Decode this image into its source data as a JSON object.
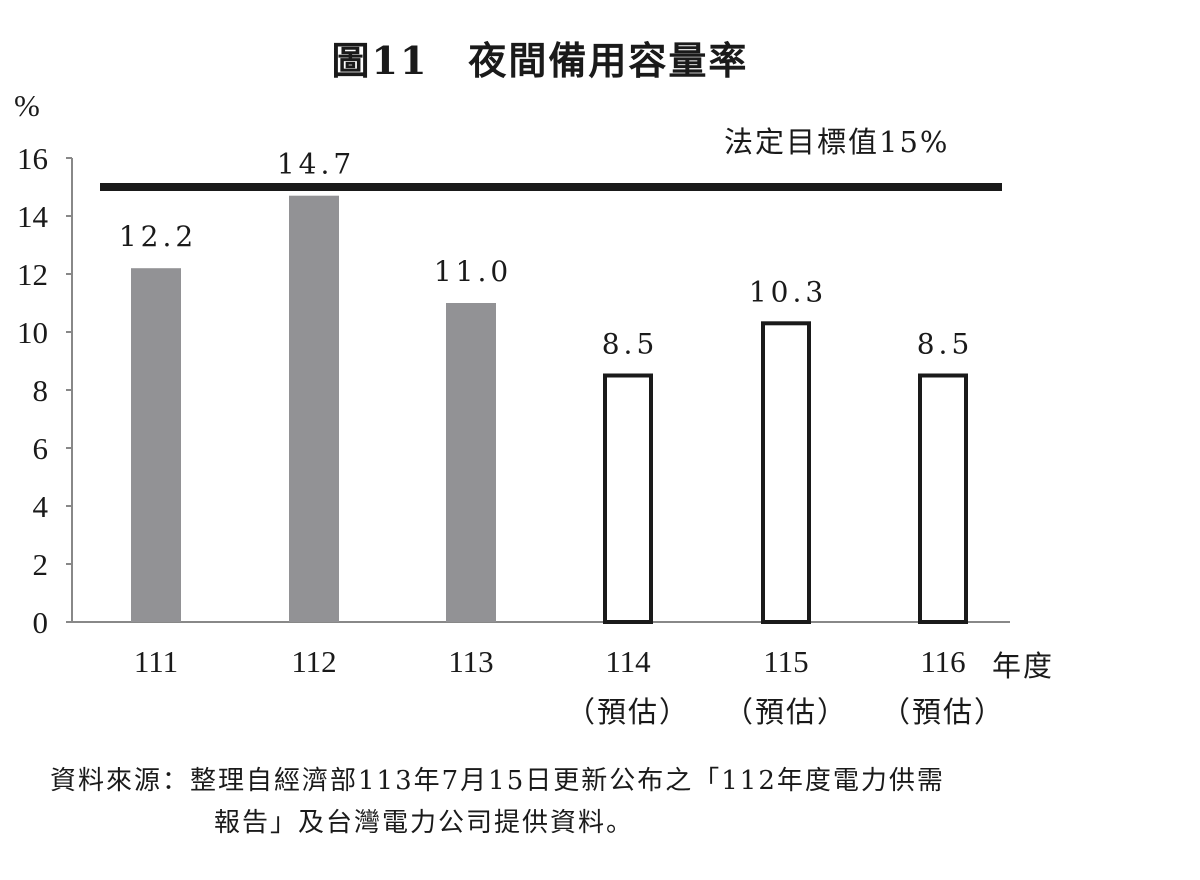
{
  "chart_data": {
    "type": "bar",
    "title": "圖11　夜間備用容量率",
    "ylabel": "%",
    "xlabel": "年度",
    "ylim": [
      0,
      16
    ],
    "yticks": [
      0,
      2,
      4,
      6,
      8,
      10,
      12,
      14,
      16
    ],
    "categories": [
      "111",
      "112",
      "113",
      "114",
      "115",
      "116"
    ],
    "category_notes": [
      "",
      "",
      "",
      "（預估）",
      "（預估）",
      "（預估）"
    ],
    "values": [
      12.2,
      14.7,
      11.0,
      8.5,
      10.3,
      8.5
    ],
    "value_labels": [
      "12.2",
      "14.7",
      "11.0",
      "8.5",
      "10.3",
      "8.5"
    ],
    "bar_style": [
      "actual",
      "actual",
      "actual",
      "forecast",
      "forecast",
      "forecast"
    ],
    "reference_line": {
      "value": 15,
      "label": "法定目標值15%"
    },
    "grid": false,
    "colors": {
      "actual": "#929295",
      "forecast_fill": "#ffffff",
      "forecast_stroke": "#1a1a1a",
      "reference": "#1a1a1a"
    }
  },
  "source_note": {
    "line1": "資料來源：整理自經濟部113年7月15日更新公布之「112年度電力供需",
    "line2": "報告」及台灣電力公司提供資料。"
  }
}
